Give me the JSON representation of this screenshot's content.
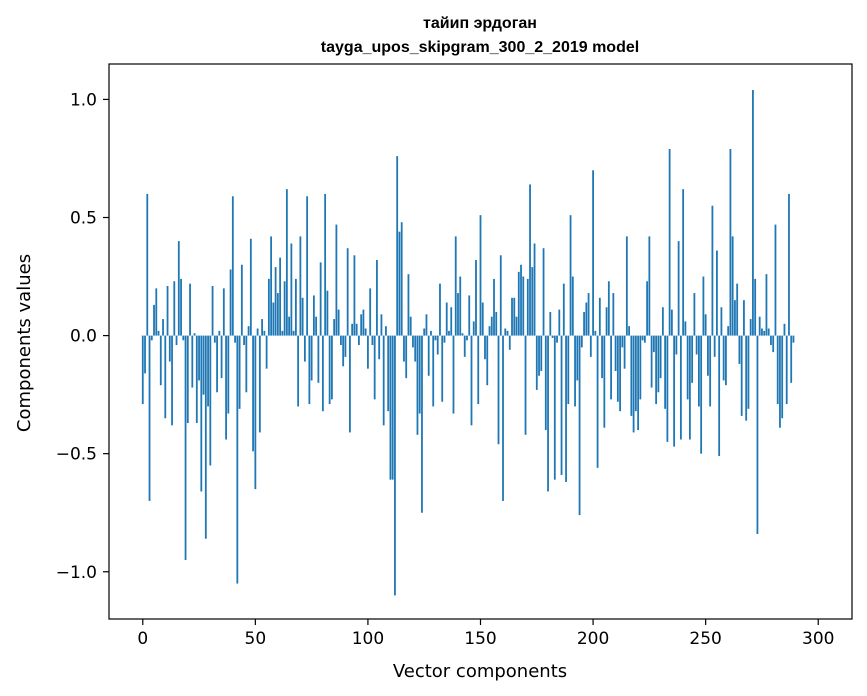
{
  "chart_data": {
    "type": "bar",
    "title_line1": "тайип эрдоган",
    "title_line2": "tayga_upos_skipgram_300_2_2019 model",
    "xlabel": "Vector components",
    "ylabel": "Components values",
    "xlim": [
      -15,
      315
    ],
    "ylim": [
      -1.2,
      1.15
    ],
    "x_ticks": [
      0,
      50,
      100,
      150,
      200,
      250,
      300
    ],
    "x_tick_labels": [
      "0",
      "50",
      "100",
      "150",
      "200",
      "250",
      "300"
    ],
    "y_ticks": [
      1.0,
      0.5,
      0.0,
      -0.5,
      -1.0
    ],
    "y_tick_labels": [
      "1.0",
      "0.5",
      "0.0",
      "−0.5",
      "−1.0"
    ],
    "bar_color": "#1f77b4",
    "grid": false,
    "values": [
      -0.29,
      -0.16,
      0.6,
      -0.7,
      -0.02,
      0.13,
      0.2,
      0.02,
      -0.21,
      0.07,
      -0.35,
      0.21,
      -0.11,
      -0.38,
      0.23,
      -0.04,
      0.4,
      0.24,
      -0.02,
      -0.95,
      -0.37,
      0.22,
      -0.22,
      0.01,
      -0.37,
      -0.19,
      -0.66,
      -0.25,
      -0.86,
      -0.3,
      -0.55,
      0.21,
      -0.03,
      -0.24,
      0.02,
      -0.18,
      0.2,
      -0.44,
      -0.33,
      0.28,
      0.59,
      -0.03,
      -1.05,
      -0.31,
      0.3,
      -0.04,
      -0.24,
      0.04,
      0.41,
      -0.49,
      -0.65,
      0.03,
      -0.41,
      0.07,
      0.02,
      -0.14,
      0.24,
      0.42,
      0.14,
      0.29,
      0.18,
      0.33,
      0.02,
      0.23,
      0.62,
      0.08,
      0.39,
      0.02,
      0.24,
      -0.3,
      0.42,
      0.16,
      -0.11,
      0.59,
      -0.29,
      -0.19,
      0.17,
      0.08,
      -0.2,
      0.31,
      -0.32,
      0.6,
      0.19,
      -0.29,
      -0.27,
      0.07,
      0.47,
      0.11,
      -0.04,
      -0.13,
      -0.09,
      0.37,
      -0.41,
      0.05,
      0.34,
      0.05,
      -0.04,
      0.09,
      0.11,
      0.03,
      -0.14,
      0.2,
      -0.04,
      -0.27,
      0.32,
      -0.1,
      0.09,
      -0.38,
      0.04,
      -0.32,
      -0.61,
      -0.61,
      -1.1,
      0.76,
      0.44,
      0.48,
      -0.11,
      -0.18,
      0.26,
      0.08,
      -0.05,
      -0.11,
      -0.42,
      -0.33,
      -0.75,
      0.03,
      0.09,
      -0.17,
      0.02,
      -0.3,
      -0.02,
      -0.08,
      0.22,
      -0.28,
      -0.03,
      0.14,
      0.02,
      0.12,
      -0.33,
      0.42,
      0.18,
      0.25,
      0.01,
      -0.09,
      -0.02,
      0.17,
      -0.38,
      0.06,
      0.32,
      -0.29,
      0.51,
      0.14,
      -0.1,
      -0.21,
      0.04,
      0.08,
      0.24,
      0.1,
      -0.46,
      0.34,
      -0.7,
      0.03,
      0.02,
      -0.06,
      0.16,
      0.16,
      0.08,
      0.27,
      0.3,
      0.25,
      -0.42,
      0.24,
      0.64,
      0.29,
      0.39,
      -0.23,
      -0.17,
      -0.15,
      0.37,
      -0.4,
      -0.66,
      0.1,
      -0.01,
      -0.61,
      -0.03,
      0.11,
      -0.59,
      0.22,
      -0.62,
      -0.29,
      0.51,
      0.25,
      -0.3,
      -0.19,
      -0.76,
      -0.05,
      0.1,
      0.14,
      0.18,
      -0.09,
      0.7,
      0.02,
      -0.56,
      0.16,
      -0.18,
      -0.39,
      0.12,
      0.23,
      -0.27,
      0.18,
      -0.15,
      -0.28,
      -0.32,
      -0.05,
      -0.14,
      0.42,
      0.04,
      -0.34,
      -0.41,
      -0.32,
      -0.4,
      -0.27,
      -0.02,
      -0.03,
      0.23,
      0.42,
      -0.22,
      -0.07,
      -0.29,
      -0.24,
      -0.18,
      0.12,
      -0.31,
      -0.45,
      0.79,
      0.11,
      -0.47,
      -0.08,
      0.4,
      -0.44,
      0.62,
      0.06,
      -0.27,
      -0.44,
      -0.2,
      0.18,
      -0.08,
      -0.3,
      -0.5,
      0.25,
      0.09,
      -0.17,
      -0.3,
      0.55,
      -0.09,
      0.36,
      -0.51,
      0.12,
      -0.19,
      -0.21,
      0.04,
      0.79,
      0.42,
      0.15,
      0.22,
      -0.12,
      -0.34,
      0.15,
      -0.36,
      -0.31,
      0.07,
      1.04,
      0.24,
      -0.84,
      0.08,
      0.03,
      0.02,
      0.26,
      0.03,
      -0.04,
      -0.07,
      0.47,
      -0.29,
      -0.39,
      -0.35,
      0.05,
      -0.29,
      0.6,
      -0.2,
      -0.03
    ]
  }
}
